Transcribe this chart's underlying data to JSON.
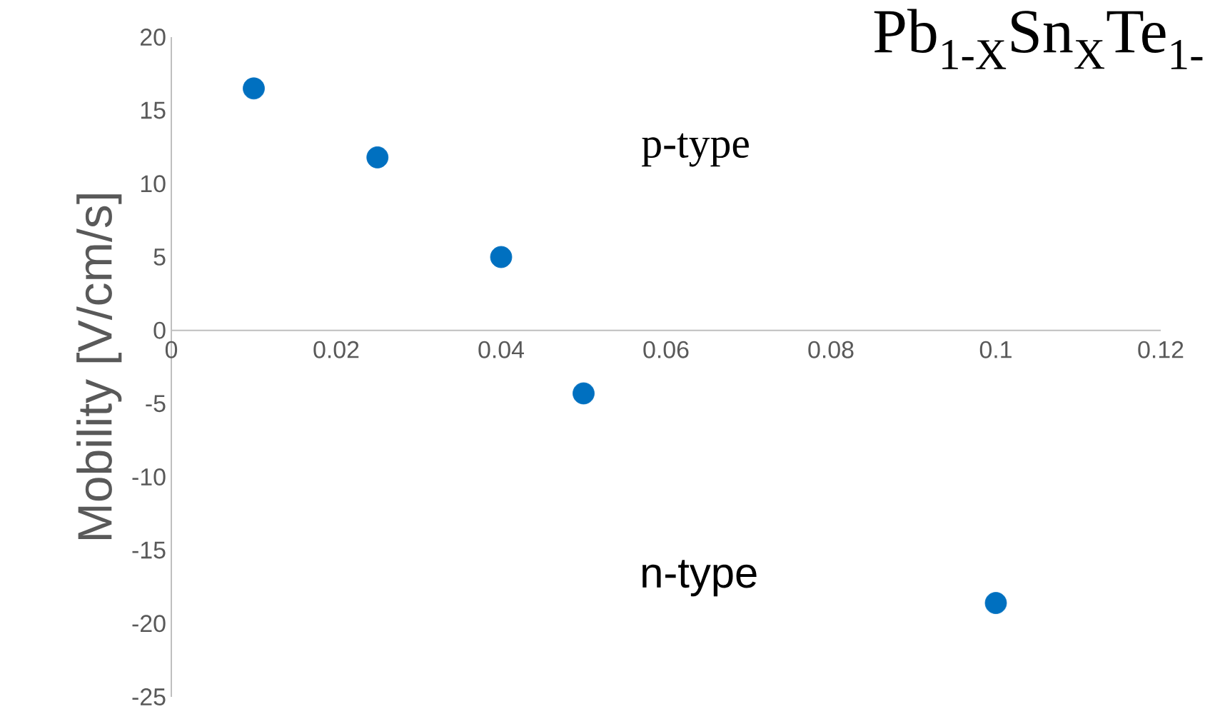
{
  "chart_data": {
    "type": "scatter",
    "title": "Pb$_{1-X}$Sn$_{X}$Te$_{1-}$",
    "ylabel": "Mobility [V/cm/s]",
    "x": [
      0.01,
      0.025,
      0.04,
      0.05,
      0.1
    ],
    "values": [
      16.5,
      11.8,
      5,
      -4.3,
      -18.6
    ],
    "color": "#0070c0",
    "marker": "circle",
    "xlim": [
      0,
      0.12
    ],
    "xticks": [
      0,
      0.02,
      0.04,
      0.06,
      0.08,
      0.1,
      0.12
    ],
    "ylim": [
      -25,
      20
    ],
    "yticks": [
      -25,
      -20,
      -15,
      -10,
      -5,
      0,
      5,
      10,
      15,
      20
    ],
    "grid": false,
    "annotations": [
      "p-type",
      "n-type"
    ]
  }
}
